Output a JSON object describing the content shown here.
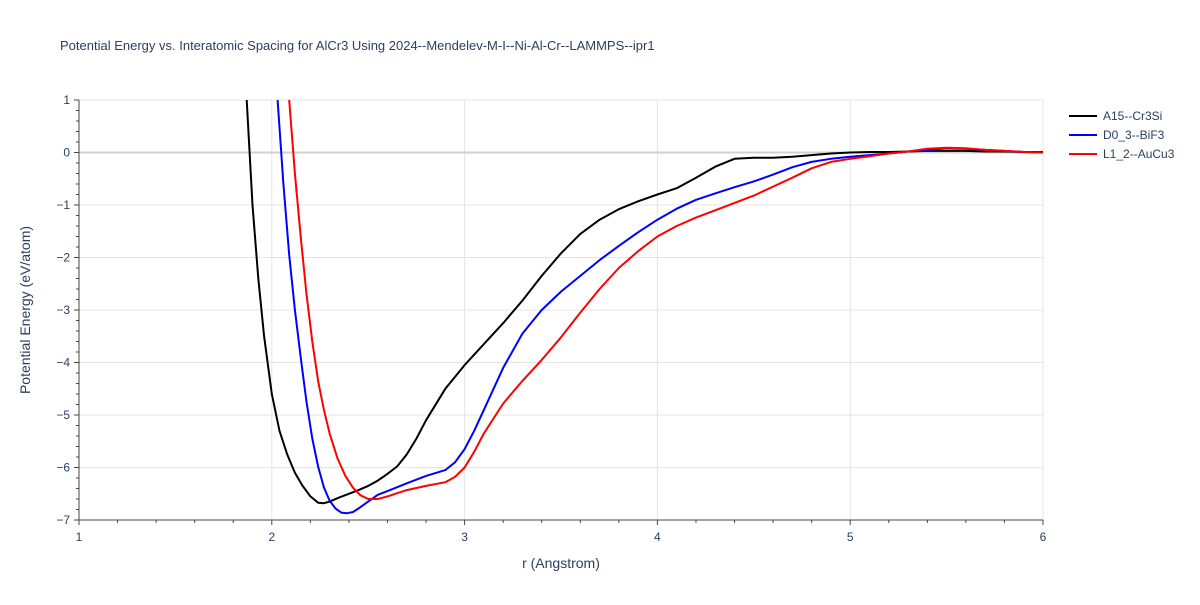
{
  "chart_data": {
    "type": "line",
    "title": "Potential Energy vs. Interatomic Spacing for AlCr3 Using 2024--Mendelev-M-I--Ni-Al-Cr--LAMMPS--ipr1",
    "xlabel": "r (Angstrom)",
    "ylabel": "Potential Energy (eV/atom)",
    "xlim": [
      1,
      6
    ],
    "ylim": [
      -7,
      1
    ],
    "xticks": [
      1,
      2,
      3,
      4,
      5,
      6
    ],
    "yticks": [
      -7,
      -6,
      -5,
      -4,
      -3,
      -2,
      -1,
      0,
      1
    ],
    "xtick_labels": [
      "1",
      "2",
      "3",
      "4",
      "5",
      "6"
    ],
    "ytick_labels": [
      "−7",
      "−6",
      "−5",
      "−4",
      "−3",
      "−2",
      "−1",
      "0",
      "1"
    ],
    "grid": true,
    "legend_position": "top-right",
    "series": [
      {
        "name": "A15--Cr3Si",
        "color": "#000000",
        "x": [
          1.87,
          1.9,
          1.93,
          1.96,
          2.0,
          2.04,
          2.08,
          2.12,
          2.16,
          2.2,
          2.24,
          2.27,
          2.3,
          2.35,
          2.4,
          2.45,
          2.5,
          2.55,
          2.6,
          2.65,
          2.7,
          2.75,
          2.8,
          2.9,
          3.0,
          3.1,
          3.2,
          3.3,
          3.4,
          3.5,
          3.6,
          3.7,
          3.8,
          3.9,
          4.0,
          4.1,
          4.2,
          4.3,
          4.4,
          4.5,
          4.6,
          4.7,
          4.8,
          4.9,
          5.0,
          5.1,
          5.2,
          5.3,
          5.4,
          5.5,
          5.6,
          5.7,
          5.8,
          5.9,
          6.0
        ],
        "y": [
          1.0,
          -1.0,
          -2.4,
          -3.5,
          -4.6,
          -5.3,
          -5.75,
          -6.1,
          -6.35,
          -6.55,
          -6.67,
          -6.68,
          -6.65,
          -6.57,
          -6.5,
          -6.43,
          -6.35,
          -6.25,
          -6.12,
          -5.98,
          -5.75,
          -5.45,
          -5.1,
          -4.5,
          -4.05,
          -3.65,
          -3.25,
          -2.82,
          -2.35,
          -1.92,
          -1.55,
          -1.28,
          -1.08,
          -0.93,
          -0.8,
          -0.68,
          -0.48,
          -0.27,
          -0.12,
          -0.1,
          -0.1,
          -0.08,
          -0.05,
          -0.02,
          0.0,
          0.01,
          0.01,
          0.02,
          0.03,
          0.03,
          0.03,
          0.02,
          0.02,
          0.01,
          0.01
        ]
      },
      {
        "name": "D0_3--BiF3",
        "color": "#0000ff",
        "x": [
          2.03,
          2.06,
          2.09,
          2.12,
          2.15,
          2.18,
          2.21,
          2.24,
          2.27,
          2.3,
          2.33,
          2.36,
          2.39,
          2.42,
          2.45,
          2.5,
          2.55,
          2.6,
          2.7,
          2.8,
          2.9,
          2.95,
          3.0,
          3.05,
          3.1,
          3.2,
          3.3,
          3.4,
          3.5,
          3.6,
          3.7,
          3.8,
          3.9,
          4.0,
          4.1,
          4.2,
          4.3,
          4.4,
          4.5,
          4.6,
          4.7,
          4.8,
          4.9,
          5.0,
          5.1,
          5.2,
          5.3,
          5.4,
          5.5,
          5.6,
          5.7,
          5.8,
          5.9,
          6.0
        ],
        "y": [
          1.0,
          -0.6,
          -1.95,
          -3.0,
          -3.9,
          -4.75,
          -5.45,
          -5.98,
          -6.38,
          -6.63,
          -6.78,
          -6.86,
          -6.87,
          -6.85,
          -6.78,
          -6.65,
          -6.52,
          -6.45,
          -6.3,
          -6.16,
          -6.05,
          -5.9,
          -5.65,
          -5.3,
          -4.9,
          -4.1,
          -3.45,
          -3.0,
          -2.65,
          -2.35,
          -2.05,
          -1.78,
          -1.52,
          -1.28,
          -1.07,
          -0.9,
          -0.78,
          -0.66,
          -0.55,
          -0.42,
          -0.28,
          -0.18,
          -0.12,
          -0.08,
          -0.05,
          -0.02,
          0.02,
          0.05,
          0.08,
          0.07,
          0.05,
          0.03,
          0.01,
          0.0
        ]
      },
      {
        "name": "L1_2--AuCu3",
        "color": "#ff0000",
        "x": [
          2.09,
          2.12,
          2.15,
          2.18,
          2.21,
          2.24,
          2.27,
          2.3,
          2.34,
          2.38,
          2.42,
          2.46,
          2.5,
          2.55,
          2.6,
          2.65,
          2.7,
          2.8,
          2.9,
          2.95,
          3.0,
          3.05,
          3.1,
          3.2,
          3.3,
          3.4,
          3.5,
          3.6,
          3.7,
          3.8,
          3.9,
          4.0,
          4.1,
          4.2,
          4.3,
          4.4,
          4.5,
          4.6,
          4.7,
          4.8,
          4.9,
          5.0,
          5.1,
          5.2,
          5.3,
          5.4,
          5.5,
          5.6,
          5.7,
          5.8,
          5.9,
          6.0
        ],
        "y": [
          1.0,
          -0.4,
          -1.6,
          -2.7,
          -3.6,
          -4.35,
          -4.9,
          -5.35,
          -5.82,
          -6.15,
          -6.38,
          -6.53,
          -6.6,
          -6.6,
          -6.55,
          -6.49,
          -6.43,
          -6.35,
          -6.28,
          -6.18,
          -6.0,
          -5.7,
          -5.35,
          -4.78,
          -4.35,
          -3.95,
          -3.52,
          -3.05,
          -2.6,
          -2.2,
          -1.88,
          -1.6,
          -1.4,
          -1.24,
          -1.1,
          -0.96,
          -0.82,
          -0.65,
          -0.48,
          -0.3,
          -0.18,
          -0.12,
          -0.07,
          -0.02,
          0.02,
          0.07,
          0.09,
          0.08,
          0.05,
          0.03,
          0.01,
          0.0
        ]
      }
    ]
  }
}
